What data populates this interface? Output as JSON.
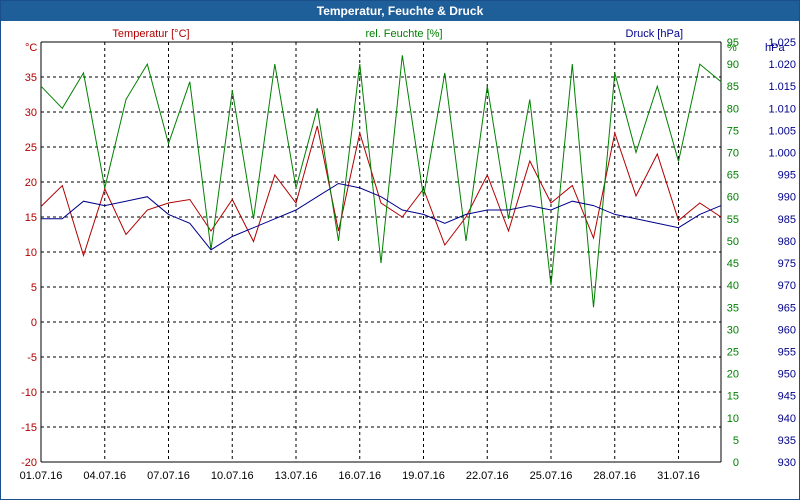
{
  "window": {
    "title": "Temperatur, Feuchte & Druck"
  },
  "chart_data": {
    "type": "line",
    "title": "Temperatur, Feuchte & Druck",
    "grid": true,
    "x_ticks": [
      "01.07.16",
      "04.07.16",
      "07.07.16",
      "10.07.16",
      "13.07.16",
      "16.07.16",
      "19.07.16",
      "22.07.16",
      "25.07.16",
      "28.07.16",
      "31.07.16"
    ],
    "x_range": [
      0,
      32
    ],
    "axes": {
      "left": {
        "unit": "°C",
        "range": [
          -20,
          40
        ],
        "ticks": [
          -20,
          -15,
          -10,
          -5,
          0,
          5,
          10,
          15,
          20,
          25,
          30,
          35
        ],
        "color": "#b00000"
      },
      "right1": {
        "unit": "%",
        "range": [
          0,
          95
        ],
        "ticks": [
          0,
          5,
          10,
          15,
          20,
          25,
          30,
          35,
          40,
          45,
          50,
          55,
          60,
          65,
          70,
          75,
          80,
          85,
          90,
          95
        ],
        "color": "#008000"
      },
      "right2": {
        "unit": "hPa",
        "range": [
          930,
          1025
        ],
        "ticks": [
          "930",
          "935",
          "940",
          "945",
          "950",
          "955",
          "960",
          "965",
          "970",
          "975",
          "980",
          "985",
          "990",
          "995",
          "1.000",
          "1.005",
          "1.010",
          "1.015",
          "1.020",
          "1.025"
        ],
        "color": "#00008b"
      }
    },
    "series": [
      {
        "name": "Temperatur [°C]",
        "axis": "left",
        "color": "#b00000",
        "values": [
          16.5,
          19.5,
          9.5,
          19,
          12.5,
          16,
          17,
          17.5,
          13,
          17.5,
          11.5,
          21,
          17,
          28,
          13,
          27,
          17,
          15,
          19,
          11,
          15,
          21,
          13,
          23,
          17,
          19.5,
          12,
          27,
          18,
          24,
          14.5,
          17,
          15
        ]
      },
      {
        "name": "rel. Feuchte [%]",
        "axis": "right1",
        "color": "#008000",
        "values": [
          85,
          80,
          88,
          62,
          82,
          90,
          72,
          86,
          48,
          84,
          55,
          90,
          62,
          80,
          50,
          90,
          45,
          92,
          60,
          88,
          50,
          85,
          55,
          82,
          40,
          90,
          35,
          88,
          70,
          85,
          68,
          90,
          86
        ]
      },
      {
        "name": "Druck [hPa]",
        "axis": "right2",
        "color": "#00008b",
        "values": [
          985,
          985,
          989,
          988,
          989,
          990,
          986,
          984,
          978,
          981,
          983,
          985,
          987,
          990,
          993,
          992,
          990,
          987,
          986,
          984,
          986,
          987,
          987,
          988,
          987,
          989,
          988,
          986,
          985,
          984,
          983,
          986,
          988
        ]
      }
    ]
  }
}
